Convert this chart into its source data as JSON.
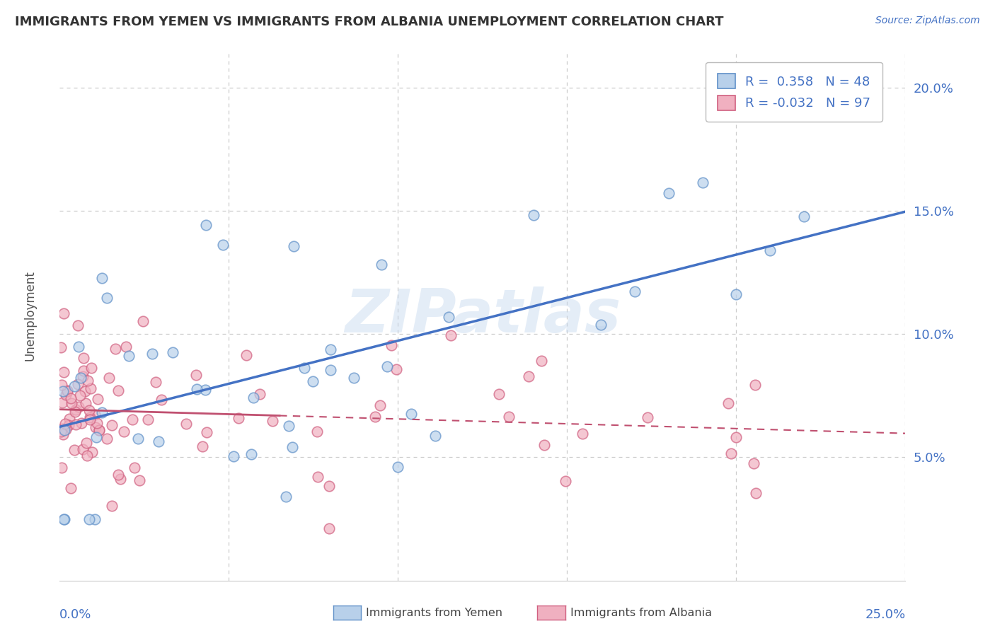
{
  "title": "IMMIGRANTS FROM YEMEN VS IMMIGRANTS FROM ALBANIA UNEMPLOYMENT CORRELATION CHART",
  "source": "Source: ZipAtlas.com",
  "ylabel": "Unemployment",
  "xlim": [
    0.0,
    0.25
  ],
  "ylim": [
    0.0,
    0.215
  ],
  "yticks": [
    0.05,
    0.1,
    0.15,
    0.2
  ],
  "ytick_labels": [
    "5.0%",
    "10.0%",
    "15.0%",
    "20.0%"
  ],
  "xtick_label_left": "0.0%",
  "xtick_label_right": "25.0%",
  "watermark": "ZIPatlas",
  "legend_line1": "R =  0.358   N = 48",
  "legend_line2": "R = -0.032   N = 97",
  "color_yemen_face": "#b8d0ea",
  "color_yemen_edge": "#6090c8",
  "color_albania_face": "#f0b0c0",
  "color_albania_edge": "#d06080",
  "line_color_yemen": "#4472c4",
  "line_color_albania": "#c05070",
  "tick_color": "#4472c4",
  "background_color": "#ffffff",
  "grid_color": "#cccccc",
  "legend_label_yemen": "Immigrants from Yemen",
  "legend_label_albania": "Immigrants from Albania",
  "text_color": "#333333"
}
